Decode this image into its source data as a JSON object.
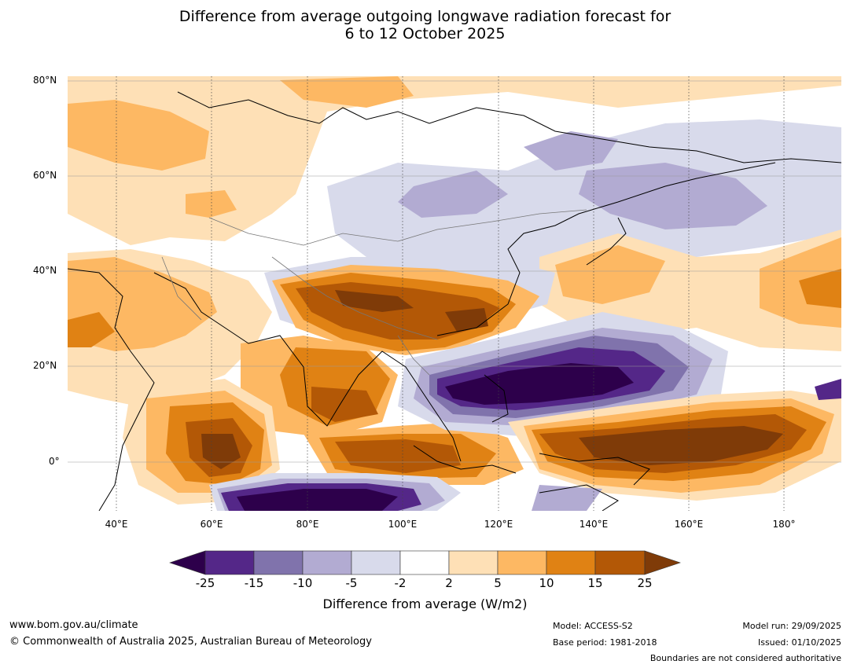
{
  "title": {
    "line1": "Difference from average outgoing longwave radiation forecast for",
    "line2": "6 to 12 October 2025"
  },
  "map": {
    "lat_labels": [
      "80°N",
      "60°N",
      "40°N",
      "20°N",
      "0°"
    ],
    "lon_labels": [
      "40°E",
      "60°E",
      "80°E",
      "100°E",
      "120°E",
      "140°E",
      "160°E",
      "180°"
    ],
    "colors": {
      "lt_m25": "#2d004b",
      "m25_m15": "#542788",
      "m15_m10": "#8073ac",
      "m10_m5": "#b2abd2",
      "m5_m2": "#d8daeb",
      "m2_2": "#ffffff",
      "p2_p5": "#fee0b6",
      "p5_p10": "#fdb863",
      "p10_p15": "#e08214",
      "p15_p25": "#b35806",
      "gt_p25": "#7f3b08"
    }
  },
  "colorbar": {
    "ticks": [
      "-25",
      "-15",
      "-10",
      "-5",
      "-2",
      "2",
      "5",
      "10",
      "15",
      "25"
    ],
    "label": "Difference from average (W/m2)"
  },
  "footer": {
    "url": "www.bom.gov.au/climate",
    "copyright": "© Commonwealth of Australia 2025, Australian Bureau of Meteorology",
    "model": "Model: ACCESS-S2",
    "base_period": "Base period: 1981-2018",
    "model_run": "Model run: 29/09/2025",
    "issued": "Issued: 01/10/2025",
    "disclaimer": "Boundaries are not considered authoritative"
  }
}
